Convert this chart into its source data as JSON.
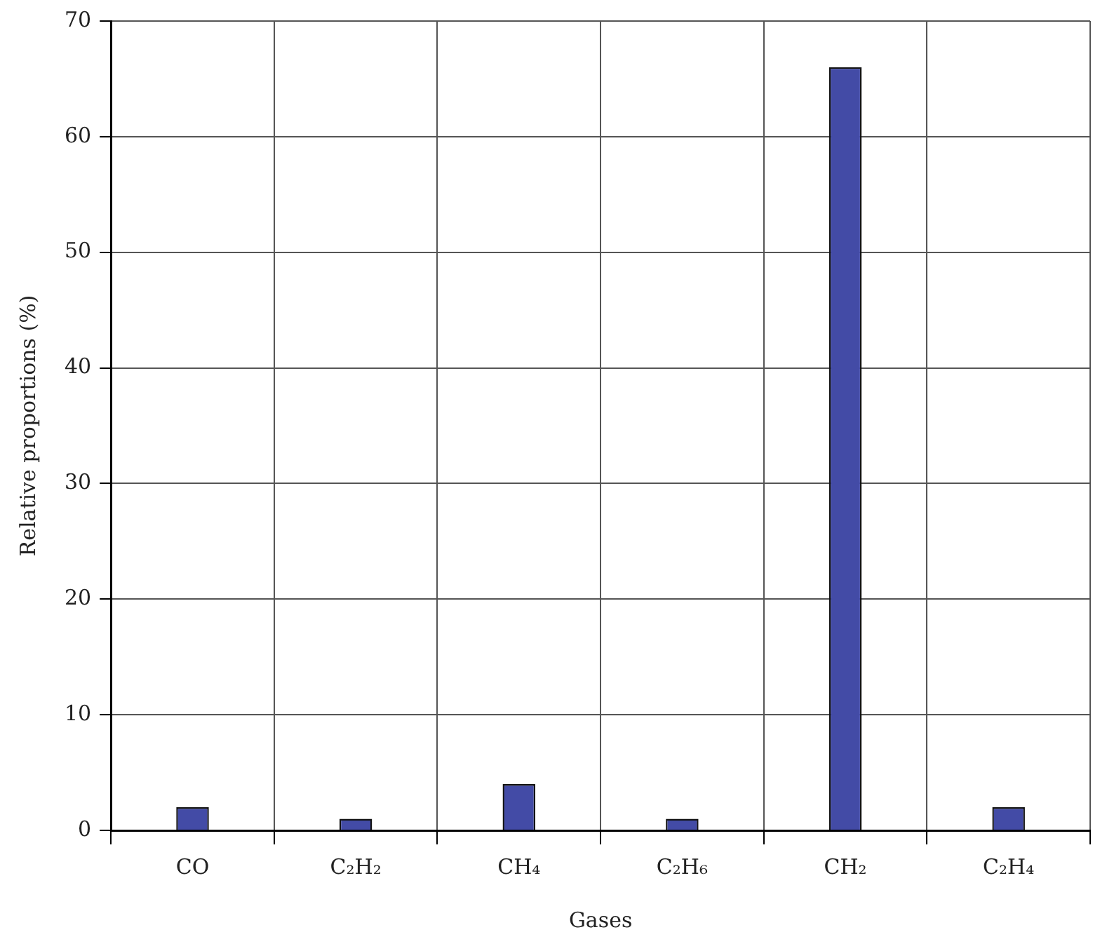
{
  "chart_data": {
    "type": "bar",
    "xlabel": "Gases",
    "ylabel": "Relative proportions (%)",
    "categories": [
      "CO",
      "C₂H₂",
      "CH₄",
      "C₂H₆",
      "CH₂",
      "C₂H₄"
    ],
    "series": [
      {
        "color": "#434ba6",
        "values": [
          2,
          1,
          4,
          1,
          66,
          2
        ]
      }
    ],
    "ylim": [
      0,
      70
    ],
    "yticks": [
      0,
      10,
      20,
      30,
      40,
      50,
      60,
      70
    ],
    "grid": true,
    "legend": false
  }
}
